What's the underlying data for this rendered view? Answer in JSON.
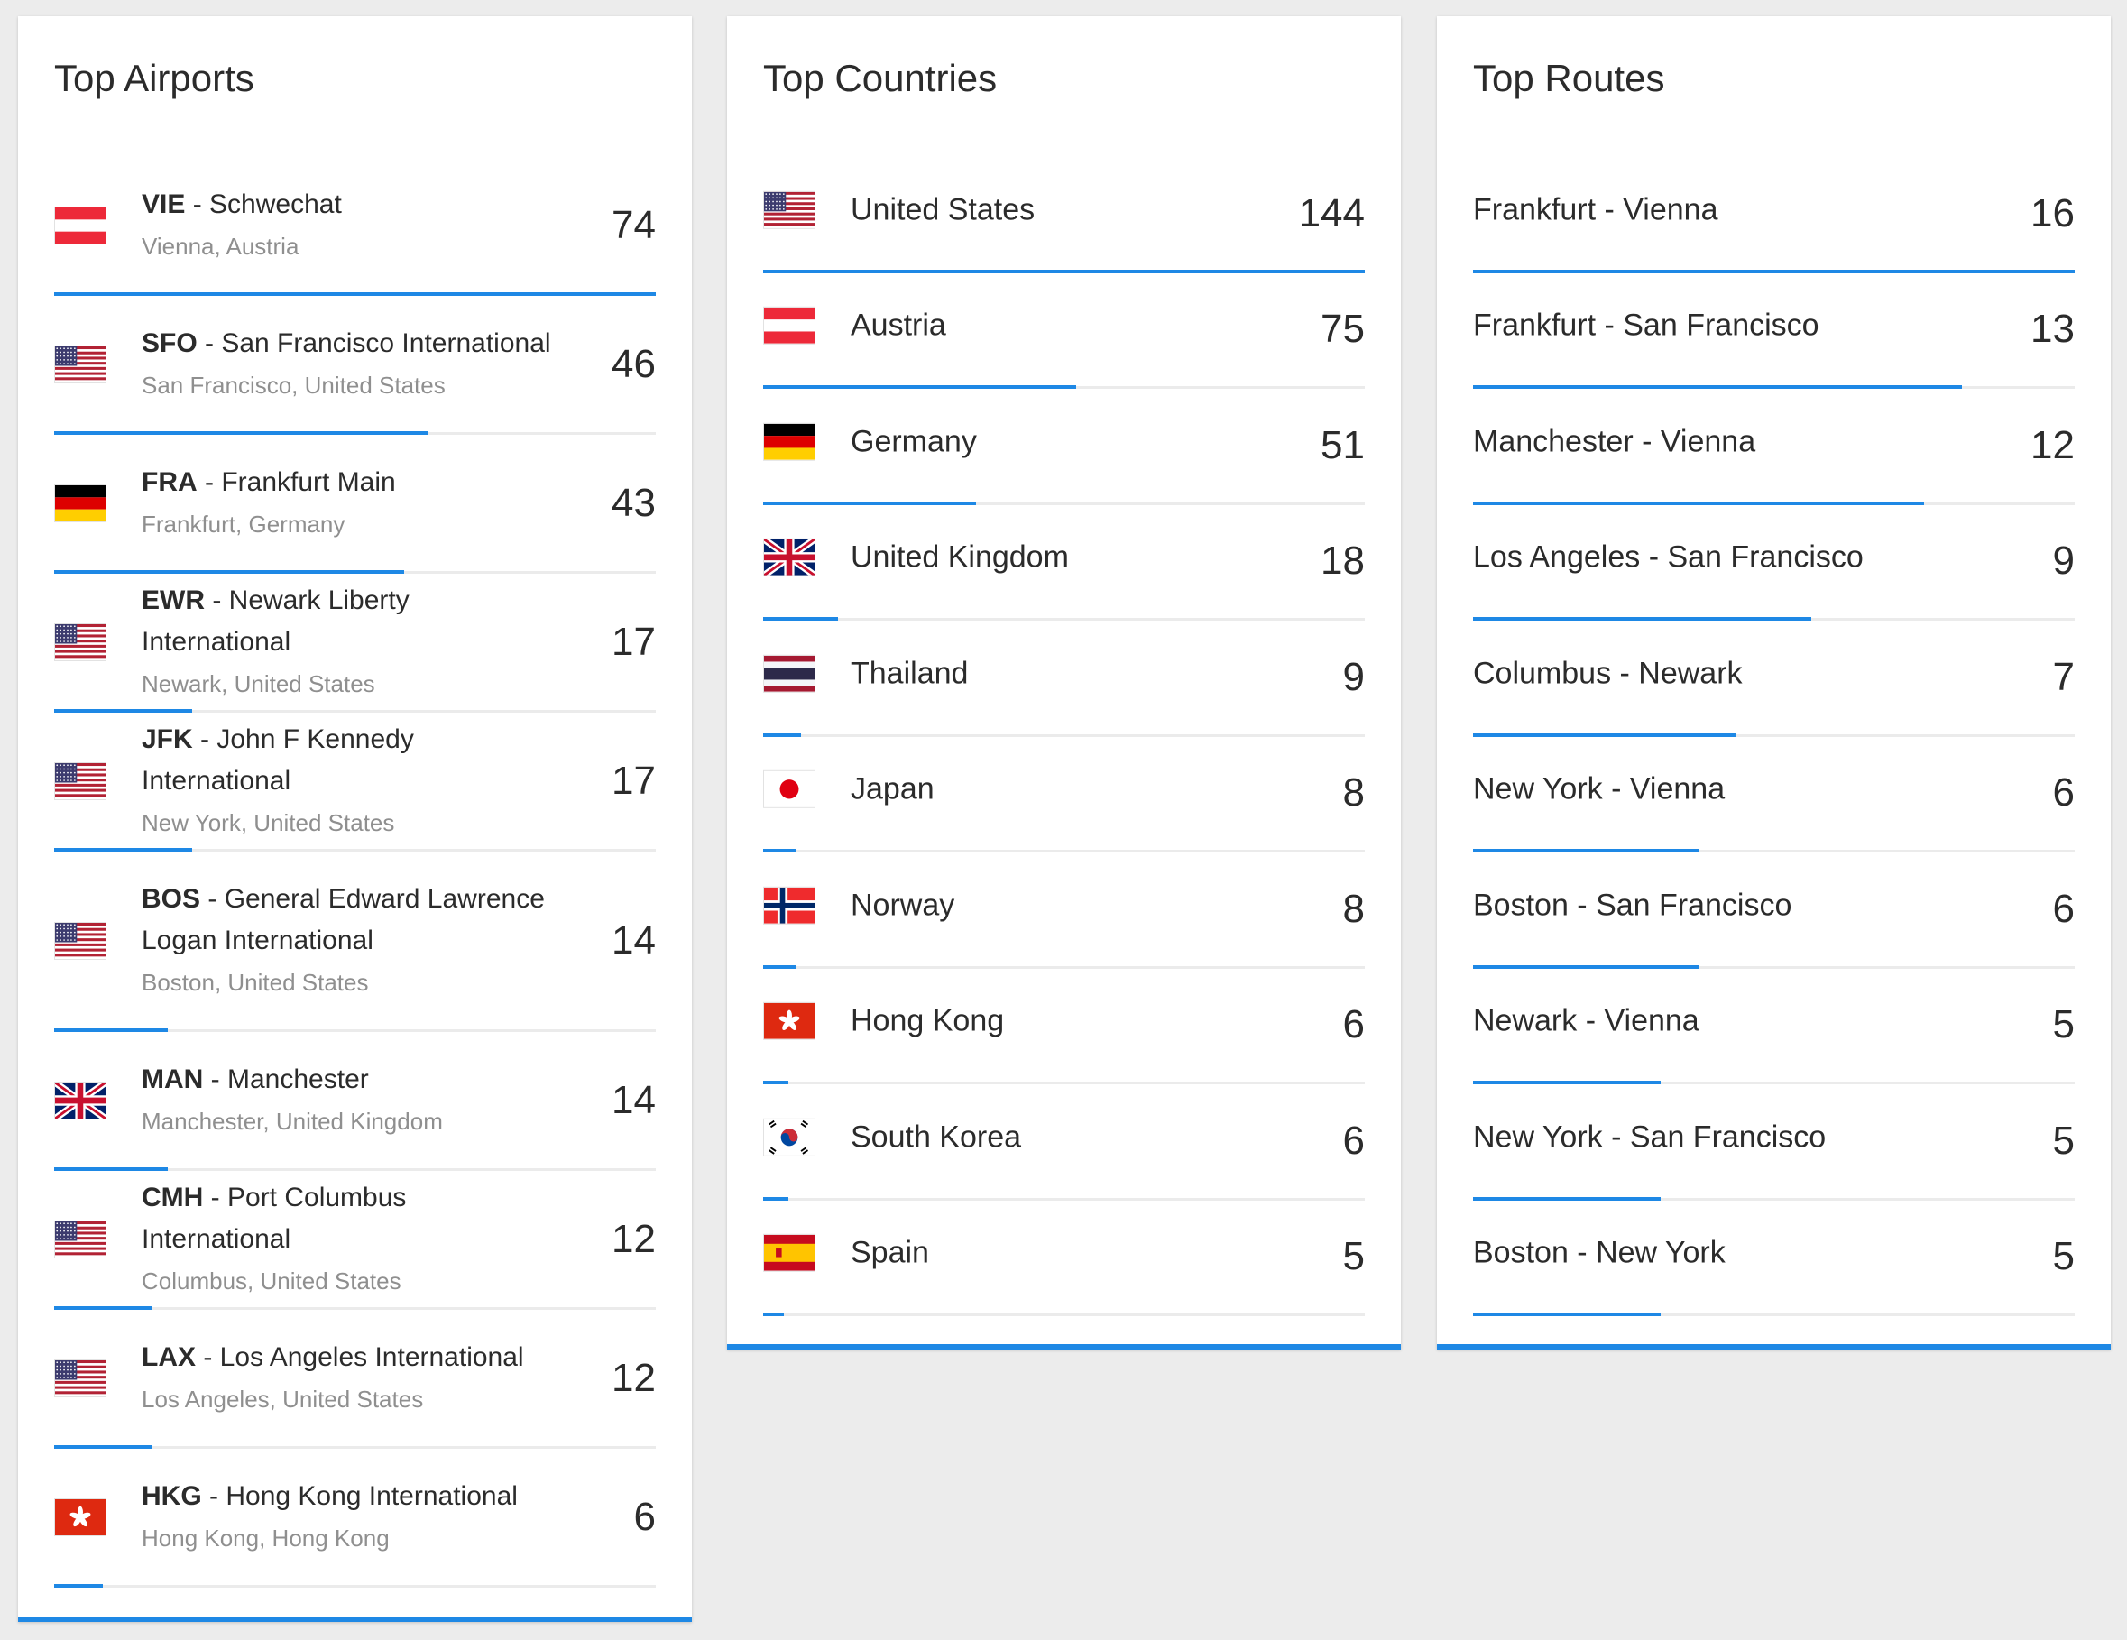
{
  "airports": {
    "title": "Top Airports",
    "items": [
      {
        "code": "VIE",
        "name": "Schwechat",
        "location": "Vienna, Austria",
        "count": "74",
        "value": 74,
        "flag": "austria"
      },
      {
        "code": "SFO",
        "name": "San Francisco International",
        "location": "San Francisco, United States",
        "count": "46",
        "value": 46,
        "flag": "usa"
      },
      {
        "code": "FRA",
        "name": "Frankfurt Main",
        "location": "Frankfurt, Germany",
        "count": "43",
        "value": 43,
        "flag": "germany"
      },
      {
        "code": "EWR",
        "name": "Newark Liberty International",
        "location": "Newark, United States",
        "count": "17",
        "value": 17,
        "flag": "usa"
      },
      {
        "code": "JFK",
        "name": "John F Kennedy International",
        "location": "New York, United States",
        "count": "17",
        "value": 17,
        "flag": "usa"
      },
      {
        "code": "BOS",
        "name": "General Edward Lawrence Logan International",
        "location": "Boston, United States",
        "count": "14",
        "value": 14,
        "flag": "usa"
      },
      {
        "code": "MAN",
        "name": "Manchester",
        "location": "Manchester, United Kingdom",
        "count": "14",
        "value": 14,
        "flag": "uk"
      },
      {
        "code": "CMH",
        "name": "Port Columbus International",
        "location": "Columbus, United States",
        "count": "12",
        "value": 12,
        "flag": "usa"
      },
      {
        "code": "LAX",
        "name": "Los Angeles International",
        "location": "Los Angeles, United States",
        "count": "12",
        "value": 12,
        "flag": "usa"
      },
      {
        "code": "HKG",
        "name": "Hong Kong International",
        "location": "Hong Kong, Hong Kong",
        "count": "6",
        "value": 6,
        "flag": "hongkong"
      }
    ]
  },
  "countries": {
    "title": "Top Countries",
    "items": [
      {
        "name": "United States",
        "count": "144",
        "value": 144,
        "flag": "usa"
      },
      {
        "name": "Austria",
        "count": "75",
        "value": 75,
        "flag": "austria"
      },
      {
        "name": "Germany",
        "count": "51",
        "value": 51,
        "flag": "germany"
      },
      {
        "name": "United Kingdom",
        "count": "18",
        "value": 18,
        "flag": "uk"
      },
      {
        "name": "Thailand",
        "count": "9",
        "value": 9,
        "flag": "thailand"
      },
      {
        "name": "Japan",
        "count": "8",
        "value": 8,
        "flag": "japan"
      },
      {
        "name": "Norway",
        "count": "8",
        "value": 8,
        "flag": "norway"
      },
      {
        "name": "Hong Kong",
        "count": "6",
        "value": 6,
        "flag": "hongkong"
      },
      {
        "name": "South Korea",
        "count": "6",
        "value": 6,
        "flag": "southkorea"
      },
      {
        "name": "Spain",
        "count": "5",
        "value": 5,
        "flag": "spain"
      }
    ]
  },
  "routes": {
    "title": "Top Routes",
    "items": [
      {
        "name": "Frankfurt - Vienna",
        "count": "16",
        "value": 16
      },
      {
        "name": "Frankfurt - San Francisco",
        "count": "13",
        "value": 13
      },
      {
        "name": "Manchester - Vienna",
        "count": "12",
        "value": 12
      },
      {
        "name": "Los Angeles - San Francisco",
        "count": "9",
        "value": 9
      },
      {
        "name": "Columbus - Newark",
        "count": "7",
        "value": 7
      },
      {
        "name": "New York - Vienna",
        "count": "6",
        "value": 6
      },
      {
        "name": "Boston - San Francisco",
        "count": "6",
        "value": 6
      },
      {
        "name": "Newark - Vienna",
        "count": "5",
        "value": 5
      },
      {
        "name": "New York - San Francisco",
        "count": "5",
        "value": 5
      },
      {
        "name": "Boston - New York",
        "count": "5",
        "value": 5
      }
    ]
  },
  "colors": {
    "accent": "#1e88e5",
    "divider": "#ebebeb",
    "secondary_text": "#8f8f8f"
  }
}
